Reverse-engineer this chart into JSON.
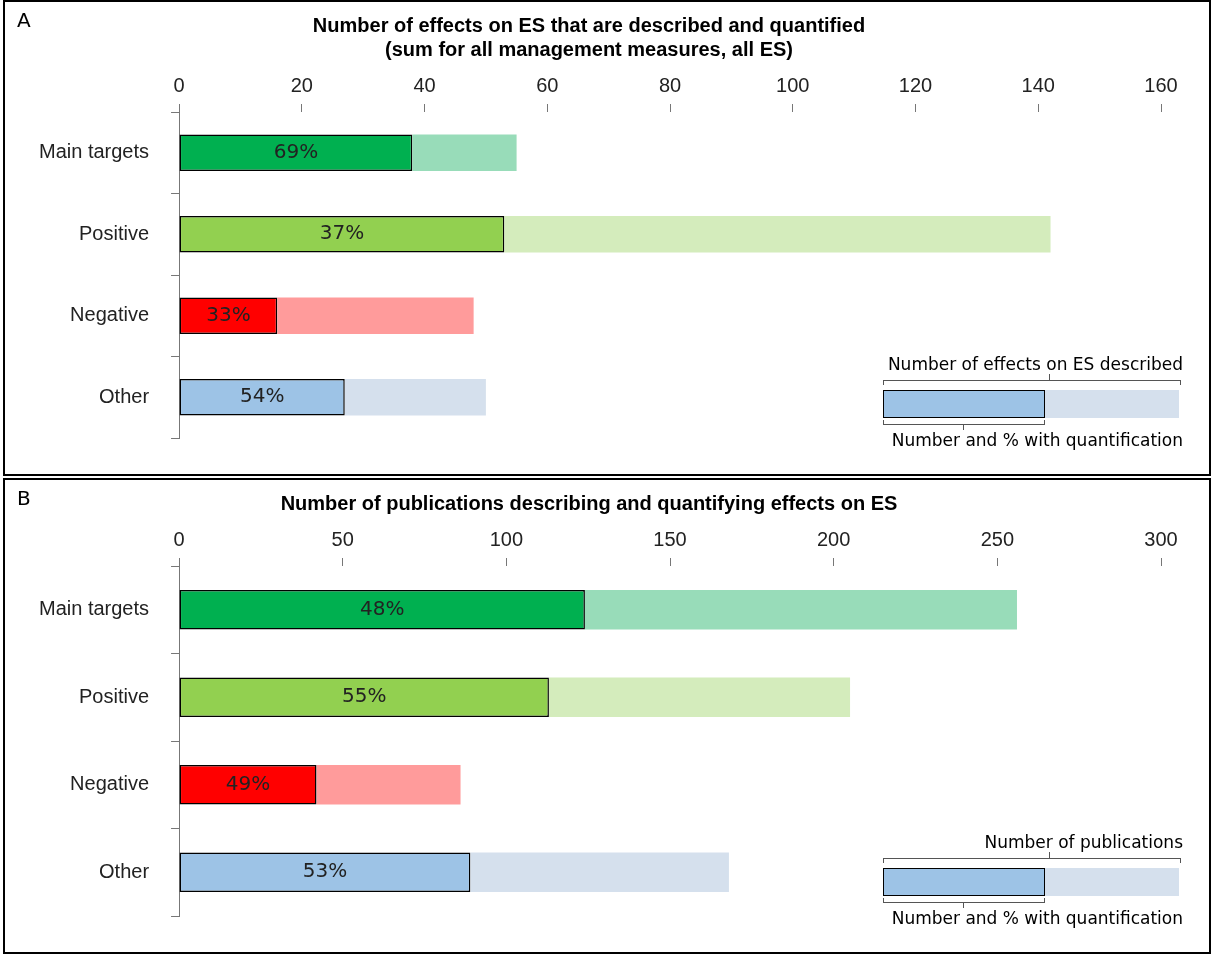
{
  "chart_data": [
    {
      "type": "bar",
      "orientation": "horizontal",
      "stacked": true,
      "title": "Number of effects on ES that are described and quantified\n(sum for all management measures, all ES)",
      "categories": [
        "Main targets",
        "Positive",
        "Negative",
        "Other"
      ],
      "series": [
        {
          "colors": [
            "#00b050",
            "#92d050",
            "#ff0000",
            "#9dc3e6"
          ],
          "values": [
            38,
            53,
            16,
            27
          ]
        },
        {
          "colors": [
            "#98dcb9",
            "#d4ecbc",
            "#ff9b9b",
            "#d5e0ed"
          ],
          "values": [
            17,
            89,
            32,
            23
          ]
        }
      ],
      "xlim": [
        0,
        160
      ],
      "xticks": [
        0,
        20,
        40,
        60,
        80,
        100,
        120,
        140,
        160
      ],
      "grid": false,
      "legend": false,
      "annotations": [
        "A",
        "Number  of effects on ES described",
        "Number  and % with quantification",
        "69%",
        "37%",
        "33%",
        "54%"
      ]
    },
    {
      "type": "bar",
      "orientation": "horizontal",
      "stacked": true,
      "title": "Number of publications describing and quantifying effects on ES",
      "categories": [
        "Main targets",
        "Positive",
        "Negative",
        "Other"
      ],
      "series": [
        {
          "colors": [
            "#00b050",
            "#92d050",
            "#ff0000",
            "#9dc3e6"
          ],
          "values": [
            124,
            113,
            42,
            89
          ]
        },
        {
          "colors": [
            "#98dcb9",
            "#d4ecbc",
            "#ff9b9b",
            "#d5e0ed"
          ],
          "values": [
            132,
            92,
            44,
            79
          ]
        }
      ],
      "xlim": [
        0,
        300
      ],
      "xticks": [
        0,
        50,
        100,
        150,
        200,
        250,
        300
      ],
      "grid": false,
      "legend": false,
      "annotations": [
        "B",
        "Number  of publications",
        "Number  and % with quantification",
        "48%",
        "55%",
        "49%",
        "53%"
      ]
    }
  ]
}
